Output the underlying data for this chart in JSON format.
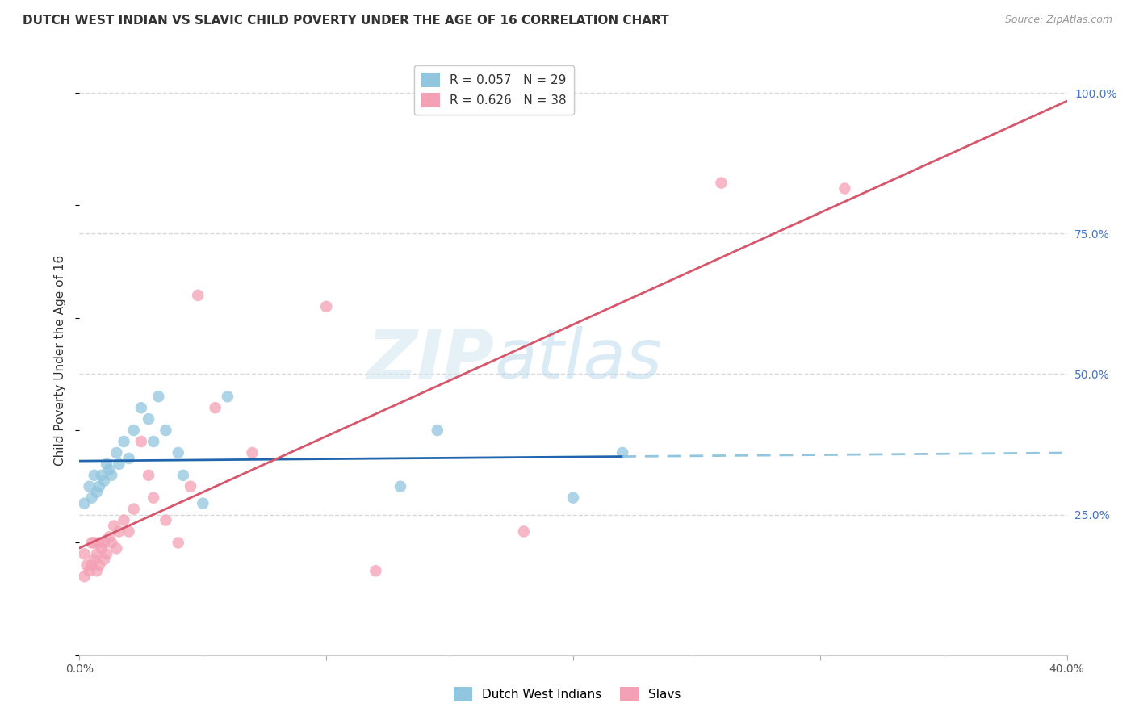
{
  "title": "DUTCH WEST INDIAN VS SLAVIC CHILD POVERTY UNDER THE AGE OF 16 CORRELATION CHART",
  "source": "Source: ZipAtlas.com",
  "ylabel": "Child Poverty Under the Age of 16",
  "xlim": [
    0.0,
    0.4
  ],
  "ylim": [
    0.0,
    1.05
  ],
  "blue_color": "#92c5de",
  "pink_color": "#f4a0b5",
  "blue_line_color": "#2166ac",
  "pink_line_color": "#d6566b",
  "blue_dashed_color": "#92c5de",
  "R_blue": 0.057,
  "N_blue": 29,
  "R_pink": 0.626,
  "N_pink": 38,
  "legend_label_blue": "Dutch West Indians",
  "legend_label_pink": "Slavs",
  "watermark_zip": "ZIP",
  "watermark_atlas": "atlas",
  "blue_scatter_x": [
    0.002,
    0.004,
    0.005,
    0.006,
    0.007,
    0.008,
    0.009,
    0.01,
    0.011,
    0.012,
    0.013,
    0.015,
    0.016,
    0.018,
    0.02,
    0.022,
    0.025,
    0.028,
    0.03,
    0.032,
    0.035,
    0.04,
    0.042,
    0.05,
    0.06,
    0.13,
    0.145,
    0.2,
    0.22
  ],
  "blue_scatter_y": [
    0.27,
    0.3,
    0.28,
    0.32,
    0.29,
    0.3,
    0.32,
    0.31,
    0.34,
    0.33,
    0.32,
    0.36,
    0.34,
    0.38,
    0.35,
    0.4,
    0.44,
    0.42,
    0.38,
    0.46,
    0.4,
    0.36,
    0.32,
    0.27,
    0.46,
    0.3,
    0.4,
    0.28,
    0.36
  ],
  "pink_scatter_x": [
    0.002,
    0.002,
    0.003,
    0.004,
    0.005,
    0.005,
    0.006,
    0.006,
    0.007,
    0.007,
    0.008,
    0.008,
    0.009,
    0.01,
    0.01,
    0.011,
    0.012,
    0.013,
    0.014,
    0.015,
    0.016,
    0.018,
    0.02,
    0.022,
    0.025,
    0.028,
    0.03,
    0.035,
    0.04,
    0.045,
    0.048,
    0.055,
    0.07,
    0.1,
    0.12,
    0.18,
    0.26,
    0.31
  ],
  "pink_scatter_y": [
    0.14,
    0.18,
    0.16,
    0.15,
    0.16,
    0.2,
    0.17,
    0.2,
    0.15,
    0.18,
    0.16,
    0.2,
    0.19,
    0.17,
    0.2,
    0.18,
    0.21,
    0.2,
    0.23,
    0.19,
    0.22,
    0.24,
    0.22,
    0.26,
    0.38,
    0.32,
    0.28,
    0.24,
    0.2,
    0.3,
    0.64,
    0.44,
    0.36,
    0.62,
    0.15,
    0.22,
    0.84,
    0.83
  ],
  "grid_color": "#d9d9d9",
  "background_color": "#ffffff",
  "title_fontsize": 11,
  "axis_label_fontsize": 11,
  "tick_fontsize": 10,
  "legend_fontsize": 11
}
